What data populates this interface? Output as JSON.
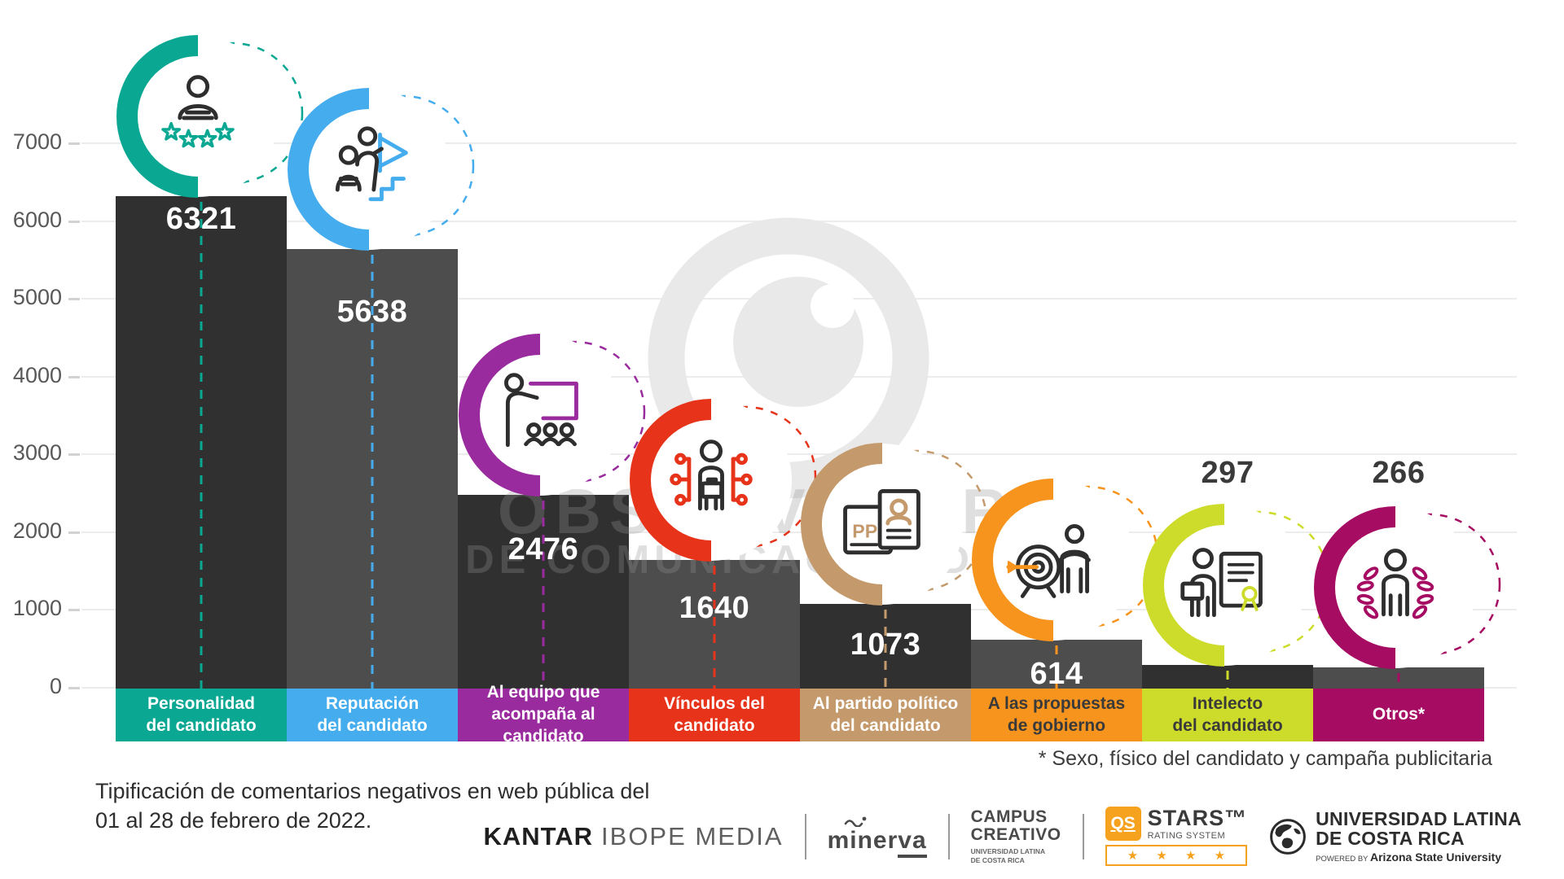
{
  "watermark": {
    "line1": "OBSERVATORIO",
    "line2": "DE COMUNICACIÓN DIGITAL",
    "icon": "eye-logo"
  },
  "chart_data": {
    "type": "bar",
    "title": "Tipificación de comentarios negativos en web pública del 01 al 28 de febrero de 2022.",
    "xlabel": "",
    "ylabel": "",
    "ylim": [
      0,
      7300
    ],
    "yticks": [
      0,
      1000,
      2000,
      3000,
      4000,
      5000,
      6000,
      7000
    ],
    "grid": true,
    "bar_fill_alternate": [
      "#303030",
      "#4D4D4D"
    ],
    "categories": [
      {
        "label": "Personalidad del candidato",
        "lines": [
          "Personalidad",
          "del candidato"
        ],
        "value": 6321,
        "color": "#0AA793",
        "label_text_color": "#FFFFFF",
        "icon": "person-stars"
      },
      {
        "label": "Reputación del candidato",
        "lines": [
          "Reputación",
          "del candidato"
        ],
        "value": 5638,
        "color": "#45ACEE",
        "label_text_color": "#FFFFFF",
        "icon": "people-flag"
      },
      {
        "label": "Al equipo que acompaña al candidato",
        "lines": [
          "Al equipo que",
          "acompaña al candidato"
        ],
        "value": 2476,
        "color": "#9A2B9E",
        "label_text_color": "#FFFFFF",
        "icon": "presenter-board"
      },
      {
        "label": "Vínculos del candidato",
        "lines": [
          "Vínculos del",
          "candidato"
        ],
        "value": 1640,
        "color": "#E6331A",
        "label_text_color": "#FFFFFF",
        "icon": "person-network"
      },
      {
        "label": "Al partido político del candidato",
        "lines": [
          "Al partido político",
          "del candidato"
        ],
        "value": 1073,
        "color": "#C49A6C",
        "label_text_color": "#FFFFFF",
        "icon": "id-cards-pp"
      },
      {
        "label": "A las propuestas de gobierno",
        "lines": [
          "A las propuestas",
          "de gobierno"
        ],
        "value": 614,
        "color": "#F7941E",
        "label_text_color": "#3A3A3A",
        "icon": "target-person"
      },
      {
        "label": "Intelecto del candidato",
        "lines": [
          "Intelecto",
          "del candidato"
        ],
        "value": 297,
        "color": "#CDDB2A",
        "label_text_color": "#3A3A3A",
        "icon": "person-certificate"
      },
      {
        "label": "Otros*",
        "lines": [
          "Otros*"
        ],
        "value": 266,
        "color": "#A50C62",
        "label_text_color": "#FFFFFF",
        "icon": "person-laurel"
      }
    ],
    "values": [
      6321,
      5638,
      2476,
      1640,
      1073,
      614,
      297,
      266
    ]
  },
  "footnote": "* Sexo, físico del candidato y campaña publicitaria",
  "caption": {
    "line1": "Tipificación de comentarios negativos en web pública del",
    "line2": "01 al 28 de febrero de 2022."
  },
  "footer": {
    "kantar": {
      "bold": "KANTAR",
      "rest": "IBOPE MEDIA"
    },
    "minerva": {
      "pre": "miner",
      "underlined": "va"
    },
    "campus": {
      "line1": "CAMPUS",
      "line2": "CREATIVO",
      "sub1": "UNIVERSIDAD LATINA",
      "sub2": "DE COSTA RICA"
    },
    "qs": {
      "badge": "QS",
      "name": "STARS™",
      "sub": "RATING SYSTEM",
      "stars": "★ ★ ★ ★"
    },
    "ulatina": {
      "line1": "UNIVERSIDAD LATINA",
      "line2": "DE COSTA RICA",
      "powered": "POWERED BY",
      "asu": "Arizona State University"
    }
  }
}
